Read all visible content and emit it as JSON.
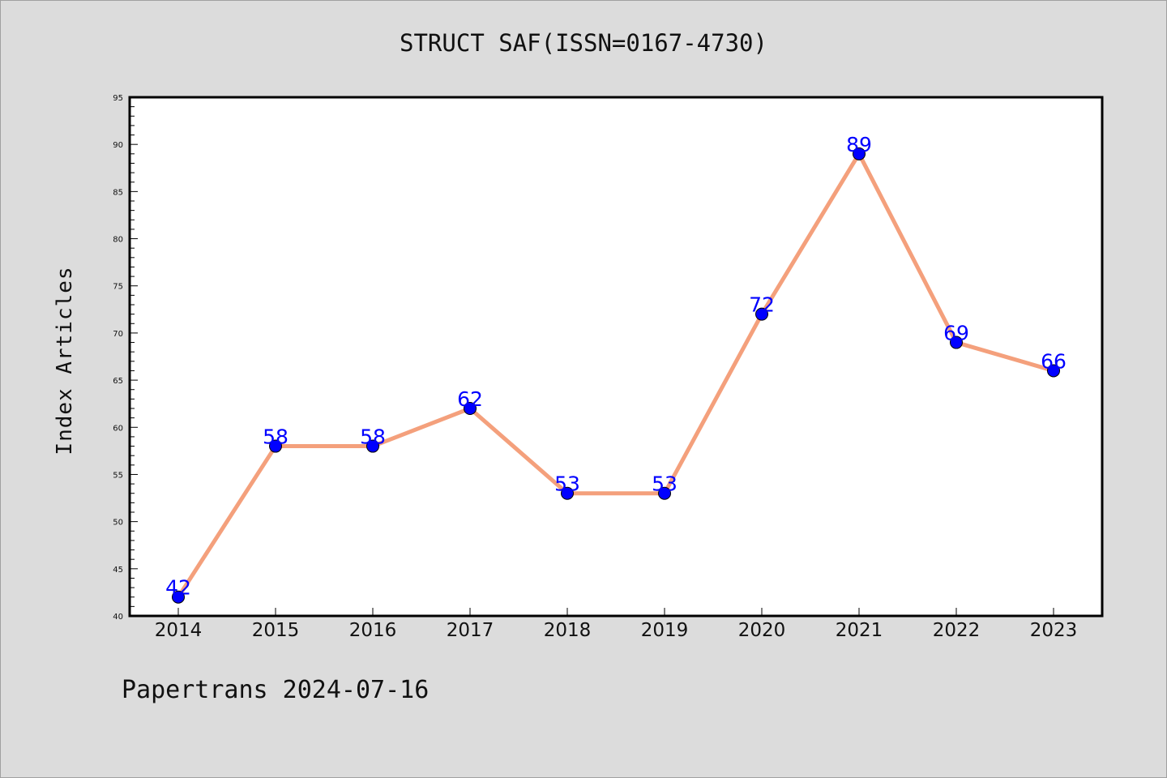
{
  "chart_data": {
    "type": "line",
    "title": "STRUCT SAF(ISSN=0167-4730)",
    "xlabel": "",
    "ylabel": "Index Articles",
    "categories": [
      "2014",
      "2015",
      "2016",
      "2017",
      "2018",
      "2019",
      "2020",
      "2021",
      "2022",
      "2023"
    ],
    "series": [
      {
        "values": [
          42,
          58,
          58,
          62,
          53,
          53,
          72,
          89,
          69,
          66
        ],
        "line_color": "#f4a07c",
        "marker_color": "#0000ff"
      }
    ],
    "ylim": [
      40,
      95
    ],
    "yticks": [
      40,
      45,
      50,
      55,
      60,
      65,
      70,
      75,
      80,
      85,
      90,
      95
    ],
    "grid": false,
    "legend": "none"
  },
  "footer": {
    "note": "Papertrans 2024-07-16"
  },
  "colors": {
    "background": "#dcdcdc",
    "plot_background": "#ffffff",
    "line": "#f4a07c",
    "marker": "#0000ff",
    "data_label": "#0000ff"
  }
}
